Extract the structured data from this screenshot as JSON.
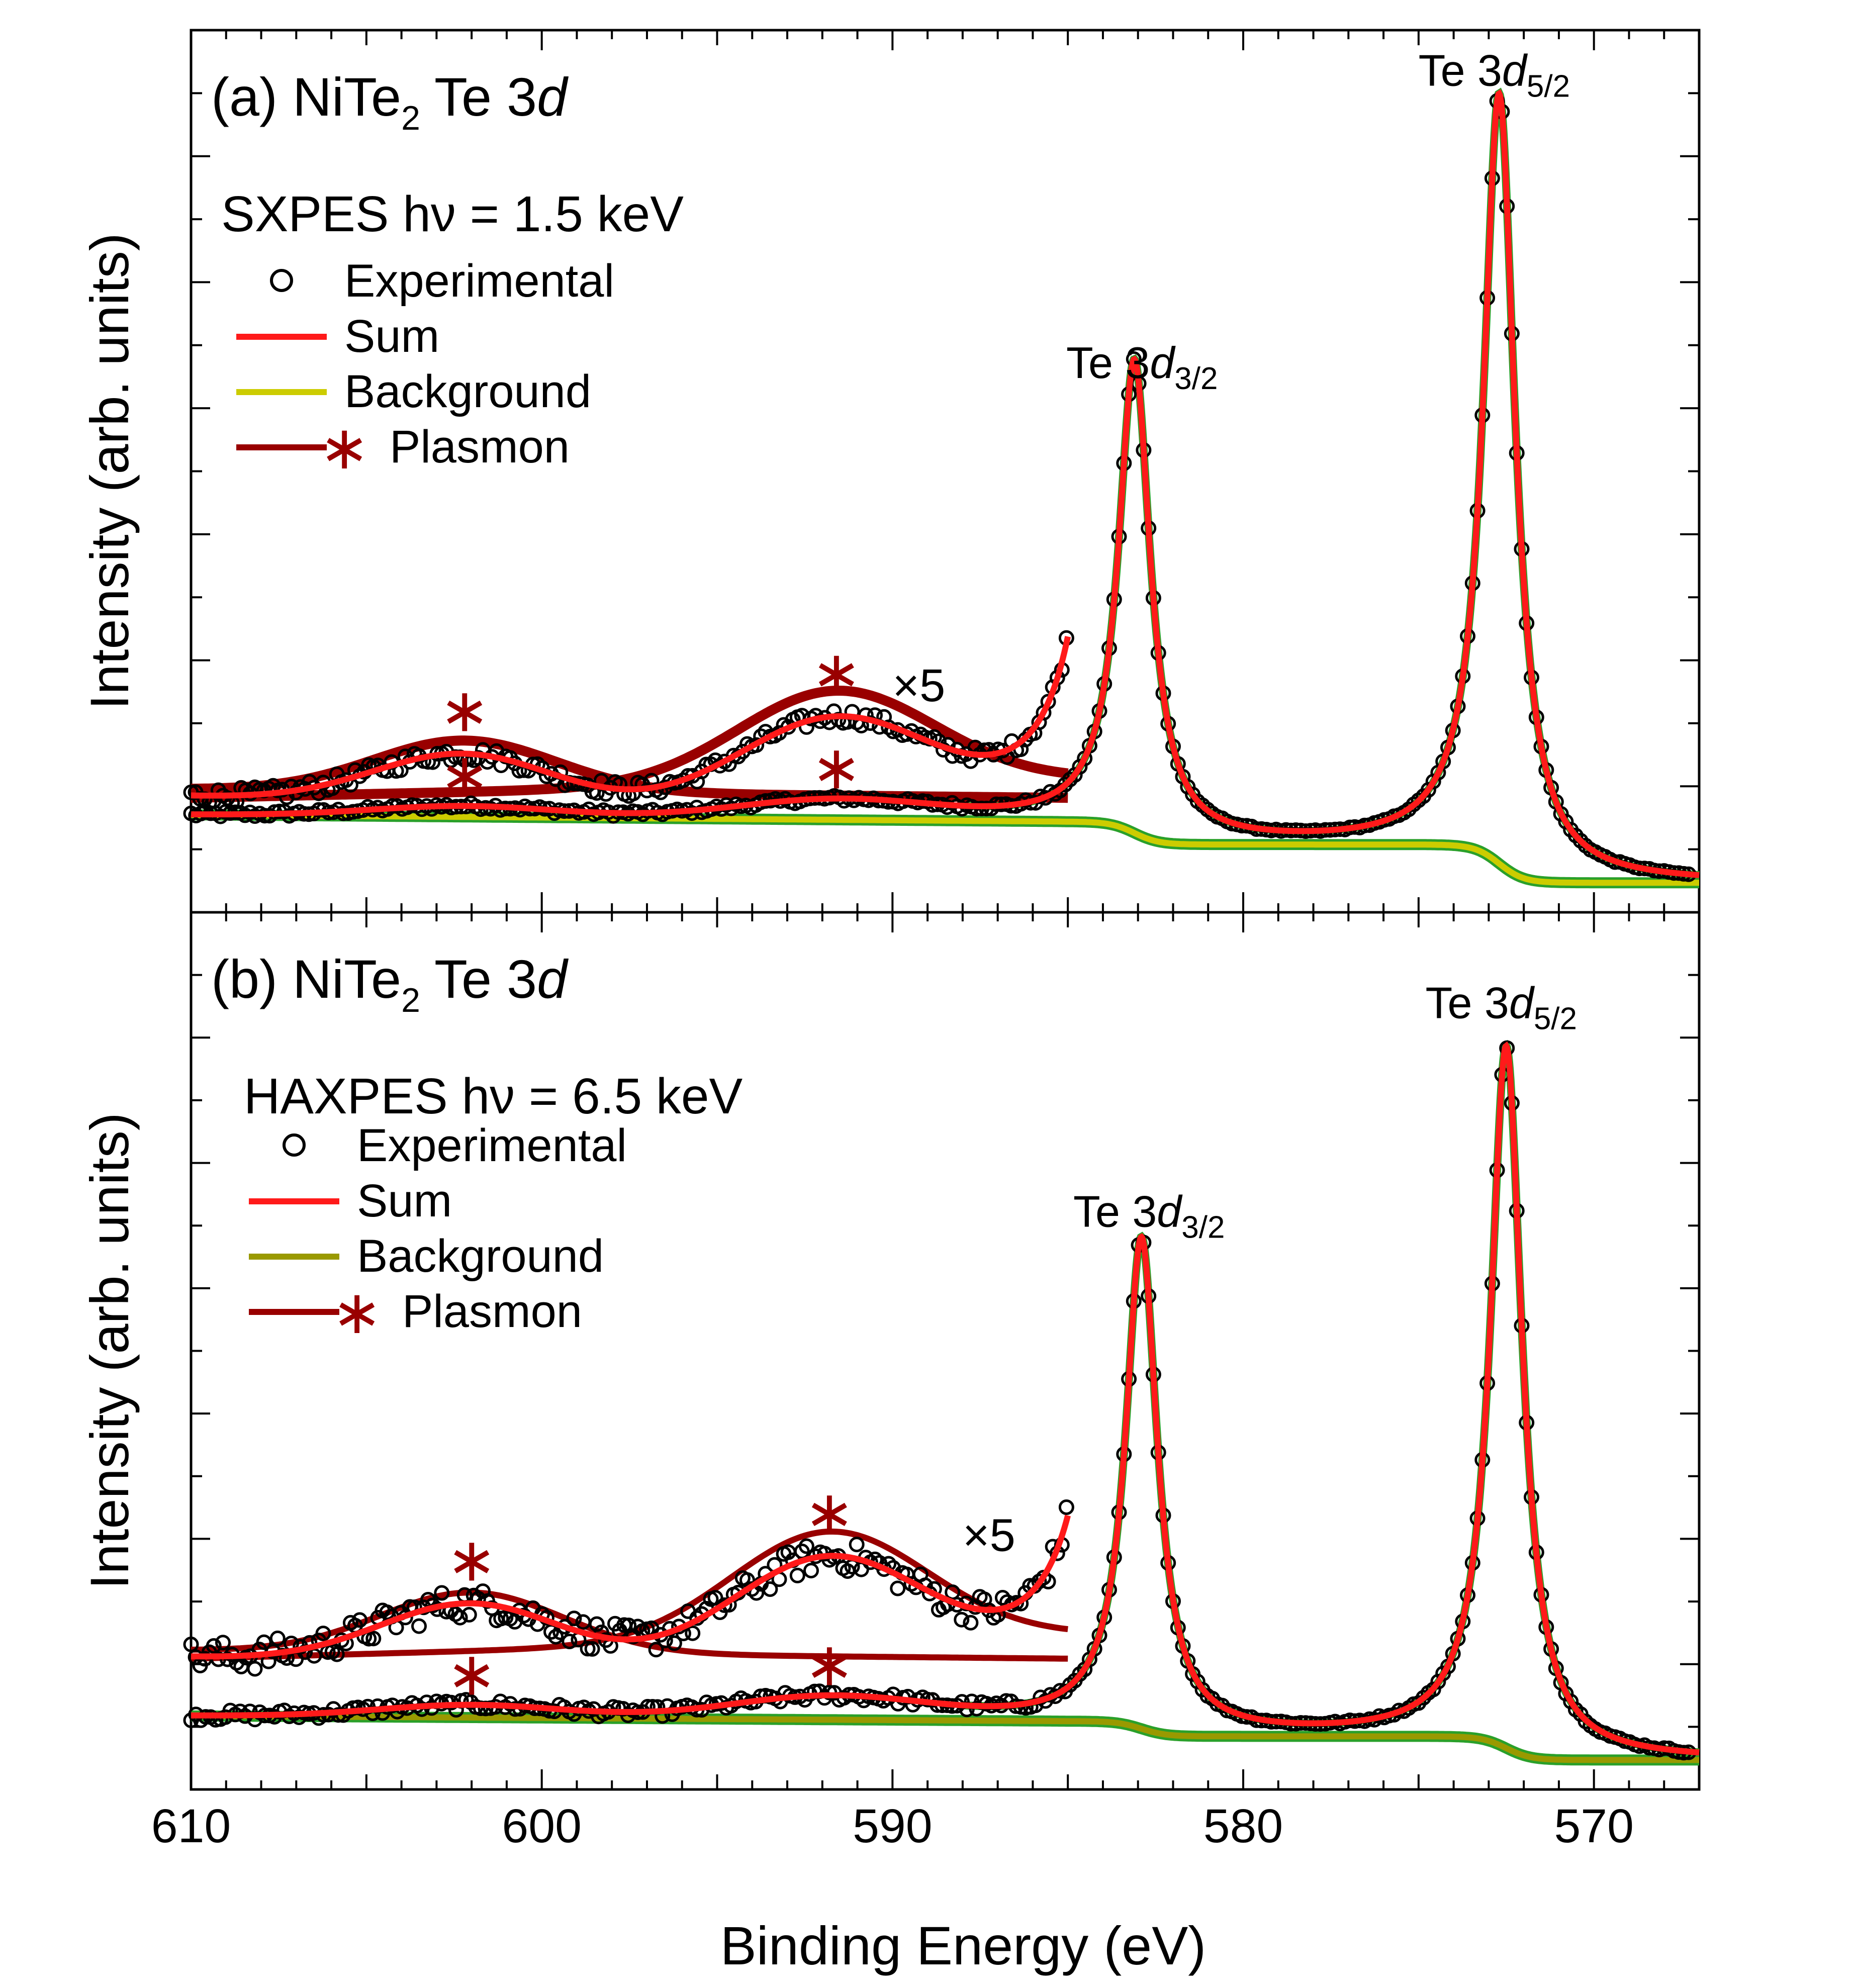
{
  "chart_data": {
    "type": "line",
    "xlabel": "Binding Energy (eV)",
    "ylabel": "Intensity (arb. units)",
    "xlim": [
      610,
      567
    ],
    "x_ticks": [
      "610",
      "600",
      "590",
      "580",
      "570"
    ],
    "legend_labels": {
      "experimental": "Experimental",
      "sum": "Sum",
      "background": "Background",
      "plasmon": "Plasmon",
      "asterisk": "∗"
    },
    "colors": {
      "experimental": "#000000",
      "sum": "#ff1a1a",
      "background_a": "#cccc00",
      "background_b": "#999900",
      "plasmon": "#990000",
      "component": "#2aa02a"
    },
    "panels": [
      {
        "title_prefix": "(a) NiTe",
        "title_sub": "2",
        "title_suffix": " Te 3",
        "title_italic": "d",
        "condition": "SXPES hν = 1.5 keV",
        "peak_52": {
          "prefix": "Te 3",
          "italic": "d",
          "sub": "5/2"
        },
        "peak_32": {
          "prefix": "Te 3",
          "italic": "d",
          "sub": "3/2"
        },
        "magnification": "×5",
        "ylim": [
          0,
          1
        ],
        "peaks": [
          {
            "label": "Te 3d5/2",
            "energy": 572.7,
            "height": 0.905
          },
          {
            "label": "Te 3d3/2",
            "energy": 583.1,
            "height": 0.555
          }
        ],
        "plasmon_energies": [
          602.2,
          591.6
        ],
        "background": {
          "low_be": 0.02,
          "step1_be": 572.7,
          "step1": 0.045,
          "step2_be": 583.1,
          "step2": 0.027,
          "slope_per_ev": 0.00032
        },
        "scaled_region": {
          "x_range": [
            610,
            585
          ],
          "factor": 5,
          "offset": 0.12
        }
      },
      {
        "title_prefix": "(b) NiTe",
        "title_sub": "2",
        "title_suffix": " Te 3",
        "title_italic": "d",
        "condition": "HAXPES hν = 6.5 keV",
        "peak_52": {
          "prefix": "Te 3",
          "italic": "d",
          "sub": "5/2"
        },
        "peak_32": {
          "prefix": "Te 3",
          "italic": "d",
          "sub": "3/2"
        },
        "magnification": "×5",
        "ylim": [
          0,
          1
        ],
        "peaks": [
          {
            "label": "Te 3d5/2",
            "energy": 572.5,
            "height": 0.83
          },
          {
            "label": "Te 3d3/2",
            "energy": 582.9,
            "height": 0.58
          }
        ],
        "plasmon_energies": [
          602.0,
          591.8
        ],
        "background": {
          "low_be": 0.02,
          "step1_be": 572.5,
          "step1": 0.028,
          "step2_be": 582.9,
          "step2": 0.018,
          "slope_per_ev": 0.00025
        },
        "scaled_region": {
          "x_range": [
            610,
            585
          ],
          "factor": 5,
          "offset": 0.14
        }
      }
    ]
  }
}
